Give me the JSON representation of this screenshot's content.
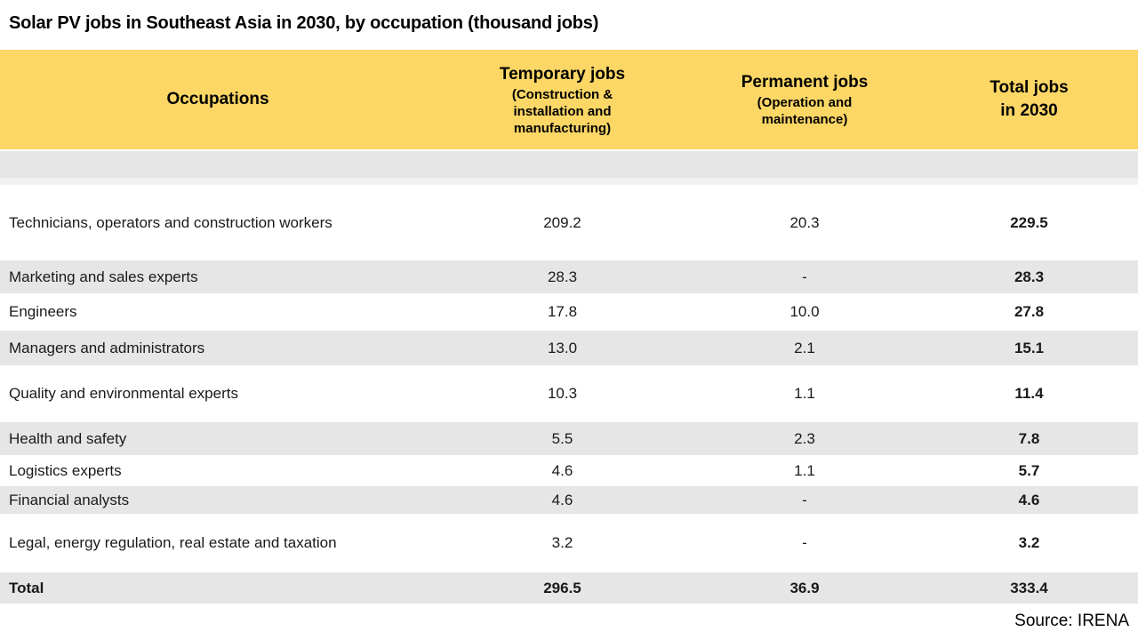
{
  "title": "Solar PV jobs in Southeast Asia in 2030, by occupation (thousand jobs)",
  "colors": {
    "header_bg": "#FCD765",
    "alt_row_bg": "#E6E6E6",
    "spacer_bg": "#F1F1F1",
    "text": "#000000"
  },
  "header": {
    "occupations": "Occupations",
    "temporary": {
      "main": "Temporary jobs",
      "sub_lines": [
        "(Construction &",
        "installation and",
        "manufacturing)"
      ]
    },
    "permanent": {
      "main": "Permanent jobs",
      "sub_lines": [
        "(Operation and",
        "maintenance)"
      ]
    },
    "total": {
      "lines": [
        "Total jobs",
        "in 2030"
      ]
    }
  },
  "table": {
    "rows": [
      {
        "occupation": "Technicians, operators and construction workers",
        "temporary": "209.2",
        "permanent": "20.3",
        "total": "229.5"
      },
      {
        "occupation": "Marketing and sales experts",
        "temporary": "28.3",
        "permanent": "-",
        "total": "28.3"
      },
      {
        "occupation": "Engineers",
        "temporary": "17.8",
        "permanent": "10.0",
        "total": "27.8"
      },
      {
        "occupation": "Managers and administrators",
        "temporary": "13.0",
        "permanent": "2.1",
        "total": "15.1"
      },
      {
        "occupation": "Quality and environmental experts",
        "temporary": "10.3",
        "permanent": "1.1",
        "total": "11.4"
      },
      {
        "occupation": "Health and safety",
        "temporary": "5.5",
        "permanent": "2.3",
        "total": "7.8"
      },
      {
        "occupation": "Logistics experts",
        "temporary": "4.6",
        "permanent": "1.1",
        "total": "5.7"
      },
      {
        "occupation": "Financial analysts",
        "temporary": "4.6",
        "permanent": "-",
        "total": "4.6"
      },
      {
        "occupation": "Legal, energy regulation, real estate and taxation",
        "temporary": "3.2",
        "permanent": "-",
        "total": "3.2"
      }
    ],
    "total_row": {
      "occupation": "Total",
      "temporary": "296.5",
      "permanent": "36.9",
      "total": "333.4"
    }
  },
  "source": "Source: IRENA",
  "chart_data": {
    "type": "table",
    "title": "Solar PV jobs in Southeast Asia in 2030, by occupation (thousand jobs)",
    "units": "thousand jobs",
    "columns": [
      "Occupations",
      "Temporary jobs (Construction & installation and manufacturing)",
      "Permanent jobs (Operation and maintenance)",
      "Total jobs in 2030"
    ],
    "rows": [
      {
        "occupation": "Technicians, operators and construction workers",
        "temporary": 209.2,
        "permanent": 20.3,
        "total": 229.5
      },
      {
        "occupation": "Marketing and sales experts",
        "temporary": 28.3,
        "permanent": null,
        "total": 28.3
      },
      {
        "occupation": "Engineers",
        "temporary": 17.8,
        "permanent": 10.0,
        "total": 27.8
      },
      {
        "occupation": "Managers and administrators",
        "temporary": 13.0,
        "permanent": 2.1,
        "total": 15.1
      },
      {
        "occupation": "Quality and environmental experts",
        "temporary": 10.3,
        "permanent": 1.1,
        "total": 11.4
      },
      {
        "occupation": "Health and safety",
        "temporary": 5.5,
        "permanent": 2.3,
        "total": 7.8
      },
      {
        "occupation": "Logistics experts",
        "temporary": 4.6,
        "permanent": 1.1,
        "total": 5.7
      },
      {
        "occupation": "Financial analysts",
        "temporary": 4.6,
        "permanent": null,
        "total": 4.6
      },
      {
        "occupation": "Legal, energy regulation, real estate and taxation",
        "temporary": 3.2,
        "permanent": null,
        "total": 3.2
      }
    ],
    "total_row": {
      "occupation": "Total",
      "temporary": 296.5,
      "permanent": 36.9,
      "total": 333.4
    },
    "source": "Source: IRENA"
  }
}
